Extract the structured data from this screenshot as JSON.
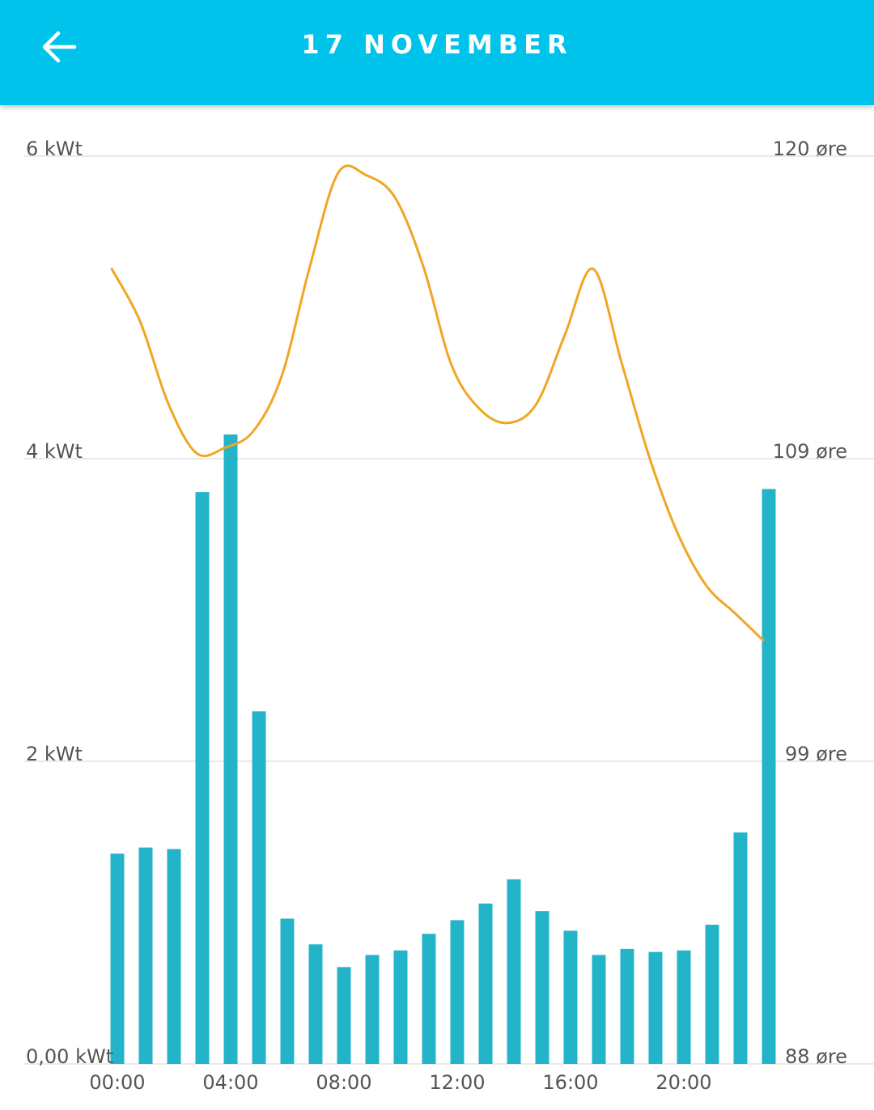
{
  "header": {
    "title": "17 NOVEMBER",
    "back_icon": "arrow-left-icon",
    "background_color": "#00c3ec"
  },
  "chart_data": {
    "type": "bar",
    "title": "17 NOVEMBER",
    "categories": [
      "00:00",
      "01:00",
      "02:00",
      "03:00",
      "04:00",
      "05:00",
      "06:00",
      "07:00",
      "08:00",
      "09:00",
      "10:00",
      "11:00",
      "12:00",
      "13:00",
      "14:00",
      "15:00",
      "16:00",
      "17:00",
      "18:00",
      "19:00",
      "20:00",
      "21:00",
      "22:00",
      "23:00"
    ],
    "x_tick_labels": [
      "00:00",
      "04:00",
      "08:00",
      "12:00",
      "16:00",
      "20:00"
    ],
    "series": [
      {
        "type": "bar",
        "axis": "left",
        "color": "#23b4c9",
        "values": [
          1.39,
          1.43,
          1.42,
          3.78,
          4.16,
          2.33,
          0.96,
          0.79,
          0.64,
          0.72,
          0.75,
          0.86,
          0.95,
          1.06,
          1.22,
          1.01,
          0.88,
          0.72,
          0.76,
          0.74,
          0.75,
          0.92,
          1.53,
          3.8
        ]
      },
      {
        "type": "line",
        "axis": "right",
        "color": "#f0a623",
        "values": [
          115.9,
          114.0,
          111.0,
          109.2,
          109.4,
          110.0,
          112.0,
          116.0,
          119.4,
          119.3,
          118.5,
          116.0,
          112.4,
          110.8,
          110.3,
          111.0,
          113.5,
          115.9,
          112.5,
          109.0,
          106.5,
          104.8,
          103.9,
          103.0
        ]
      }
    ],
    "y_left": {
      "ticks": [
        0,
        2,
        4,
        6
      ],
      "labels": [
        "0,00 kWt",
        "2 kWt",
        "4 kWt",
        "6 kWt"
      ],
      "ylim": [
        0,
        6
      ]
    },
    "y_right": {
      "ticks": [
        88,
        99,
        109,
        120
      ],
      "labels": [
        "88 øre",
        "99 øre",
        "109 øre",
        "120 øre"
      ]
    },
    "grid": true,
    "grid_color": "#e4e4e4"
  }
}
